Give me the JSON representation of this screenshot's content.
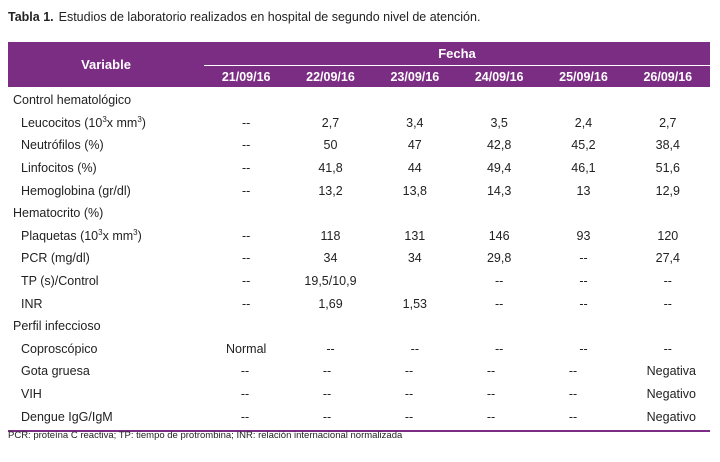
{
  "caption": {
    "label": "Tabla 1.",
    "text": "Estudios de laboratorio realizados en hospital de segundo nivel de atención."
  },
  "table": {
    "variable_header": "Variable",
    "fecha_header": "Fecha",
    "dates": [
      "21/09/16",
      "22/09/16",
      "23/09/16",
      "24/09/16",
      "25/09/16",
      "26/09/16"
    ]
  },
  "rows": [
    {
      "type": "section",
      "label": "Control hematológico"
    },
    {
      "type": "data",
      "label": "Leucocitos (10",
      "sup": "3",
      "label_after": "x mm",
      "sup2": "3",
      "label_end": ")",
      "values": [
        "--",
        "2,7",
        "3,4",
        "3,5",
        "2,4",
        "2,7"
      ]
    },
    {
      "type": "data",
      "label": "Neutrófilos (%)",
      "values": [
        "--",
        "50",
        "47",
        "42,8",
        "45,2",
        "38,4"
      ]
    },
    {
      "type": "data",
      "label": "Linfocitos (%)",
      "values": [
        "--",
        "41,8",
        "44",
        "49,4",
        "46,1",
        "51,6"
      ]
    },
    {
      "type": "data",
      "label": "Hemoglobina (gr/dl)",
      "values": [
        "--",
        "13,2",
        "13,8",
        "14,3",
        "13",
        "12,9"
      ]
    },
    {
      "type": "section",
      "label": "Hematocrito (%)"
    },
    {
      "type": "data",
      "label": "Plaquetas (10",
      "sup": "3",
      "label_after": "x mm",
      "sup2": "3",
      "label_end": ")",
      "values": [
        "--",
        "118",
        "131",
        "146",
        "93",
        "120"
      ]
    },
    {
      "type": "data",
      "label": "PCR (mg/dl)",
      "values": [
        "--",
        "34",
        "34",
        "29,8",
        "--",
        "27,4"
      ]
    },
    {
      "type": "data",
      "label": "TP (s)/Control",
      "values": [
        "--",
        "19,5/10,9",
        "",
        "--",
        "--",
        "--"
      ]
    },
    {
      "type": "data",
      "label": "INR",
      "values": [
        "--",
        "1,69",
        "1,53",
        "--",
        "--",
        "--"
      ]
    },
    {
      "type": "section",
      "label": "Perfil infeccioso"
    },
    {
      "type": "data",
      "label": "Coproscópico",
      "values": [
        "Normal",
        "--",
        "--",
        "--",
        "--",
        "--"
      ]
    },
    {
      "type": "data",
      "label": "Gota gruesa",
      "values": [
        "--",
        "--",
        "--",
        "--",
        "--",
        "Negativa"
      ],
      "right_last": true
    },
    {
      "type": "data",
      "label": "VIH",
      "values": [
        "--",
        "--",
        "--",
        "--",
        "--",
        "Negativo"
      ],
      "right_last": true
    },
    {
      "type": "data",
      "label": "Dengue IgG/IgM",
      "values": [
        "--",
        "--",
        "--",
        "--",
        "--",
        "Negativo"
      ],
      "right_last": true
    }
  ],
  "footnote": "PCR: proteína C reactiva; TP: tiempo de protrombina; INR: relación internacional normalizada"
}
